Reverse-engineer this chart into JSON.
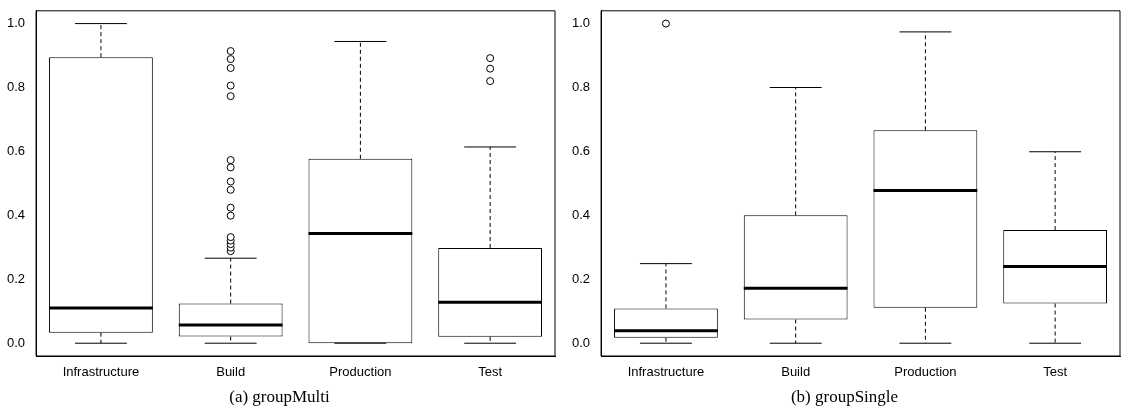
{
  "chart_data": [
    {
      "type": "box",
      "title": "(a) groupMulti",
      "categories": [
        "Infrastructure",
        "Build",
        "Production",
        "Test"
      ],
      "ylim": [
        -0.04,
        1.04
      ],
      "yticks": [
        {
          "value": 0,
          "label": "0.0"
        },
        {
          "value": 0.2,
          "label": "0.2"
        },
        {
          "value": 0.4,
          "label": "0.4"
        },
        {
          "value": 0.6,
          "label": "0.6"
        },
        {
          "value": 0.8,
          "label": "0.8"
        },
        {
          "value": 1,
          "label": "1.0"
        }
      ],
      "grid": false,
      "legend": false,
      "boxes": [
        {
          "low": 0,
          "q1": 0.033,
          "median": 0.11,
          "q3": 0.895,
          "high": 1.0
        },
        {
          "low": 0,
          "q1": 0.021,
          "median": 0.057,
          "q3": 0.124,
          "high": 0.266,
          "outliers": [
            0.288,
            0.299,
            0.31,
            0.321,
            0.332,
            0.399,
            0.424,
            0.48,
            0.506,
            0.55,
            0.573,
            0.773,
            0.806,
            0.861,
            0.889,
            0.914
          ]
        },
        {
          "low": 0,
          "q1": 0,
          "median": 0.343,
          "q3": 0.577,
          "high": 0.944
        },
        {
          "low": 0,
          "q1": 0.02,
          "median": 0.128,
          "q3": 0.298,
          "high": 0.614,
          "outliers": [
            0.82,
            0.859,
            0.892
          ]
        }
      ]
    },
    {
      "type": "box",
      "title": "(b) groupSingle",
      "categories": [
        "Infrastructure",
        "Build",
        "Production",
        "Test"
      ],
      "ylim": [
        -0.04,
        1.04
      ],
      "yticks": [
        {
          "value": 0,
          "label": "0.0"
        },
        {
          "value": 0.2,
          "label": "0.2"
        },
        {
          "value": 0.4,
          "label": "0.4"
        },
        {
          "value": 0.6,
          "label": "0.6"
        },
        {
          "value": 0.8,
          "label": "0.8"
        },
        {
          "value": 1,
          "label": "1.0"
        }
      ],
      "grid": false,
      "legend": false,
      "boxes": [
        {
          "low": 0,
          "q1": 0.017,
          "median": 0.039,
          "q3": 0.109,
          "high": 0.249,
          "outliers": [
            1.0
          ]
        },
        {
          "low": 0,
          "q1": 0.074,
          "median": 0.172,
          "q3": 0.4,
          "high": 0.8
        },
        {
          "low": 0,
          "q1": 0.111,
          "median": 0.478,
          "q3": 0.666,
          "high": 0.974
        },
        {
          "low": 0,
          "q1": 0.124,
          "median": 0.24,
          "q3": 0.354,
          "high": 0.599
        }
      ]
    }
  ]
}
